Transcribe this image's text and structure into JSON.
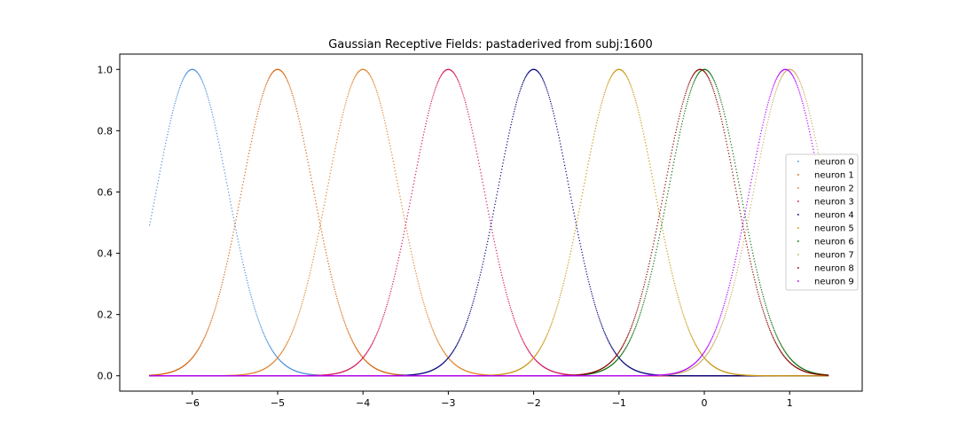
{
  "chart_data": {
    "type": "scatter",
    "title": "Gaussian Receptive Fields: pastaderived from subj:1600",
    "xlabel": "",
    "ylabel": "",
    "xlim": [
      -6.85,
      1.85
    ],
    "ylim": [
      -0.05,
      1.05
    ],
    "x_ticks": [
      -6,
      -5,
      -4,
      -3,
      -2,
      -1,
      0,
      1
    ],
    "x_tick_labels": [
      "−6",
      "−5",
      "−4",
      "−3",
      "−2",
      "−1",
      "0",
      "1"
    ],
    "y_ticks": [
      0.0,
      0.2,
      0.4,
      0.6,
      0.8,
      1.0
    ],
    "y_tick_labels": [
      "0.0",
      "0.2",
      "0.4",
      "0.6",
      "0.8",
      "1.0"
    ],
    "x_data_range": [
      -6.5,
      1.45
    ],
    "sigma": 0.42,
    "grid": false,
    "legend_position": "center-right",
    "marker": "dots",
    "series": [
      {
        "name": "neuron 0",
        "center": -6.0,
        "color": "#4a90d9"
      },
      {
        "name": "neuron 1",
        "center": -5.0,
        "color": "#d4620a"
      },
      {
        "name": "neuron 2",
        "center": -4.0,
        "color": "#e0822a"
      },
      {
        "name": "neuron 3",
        "center": -3.0,
        "color": "#d4145a"
      },
      {
        "name": "neuron 4",
        "center": -2.0,
        "color": "#00007a"
      },
      {
        "name": "neuron 5",
        "center": -1.0,
        "color": "#c8940a"
      },
      {
        "name": "neuron 6",
        "center": 0.0,
        "color": "#0a6e0a"
      },
      {
        "name": "neuron 7",
        "center": 1.0,
        "color": "#c8b064"
      },
      {
        "name": "neuron 8",
        "center": -0.05,
        "color": "#8a0000"
      },
      {
        "name": "neuron 9",
        "center": 0.95,
        "color": "#b400ff"
      }
    ]
  }
}
